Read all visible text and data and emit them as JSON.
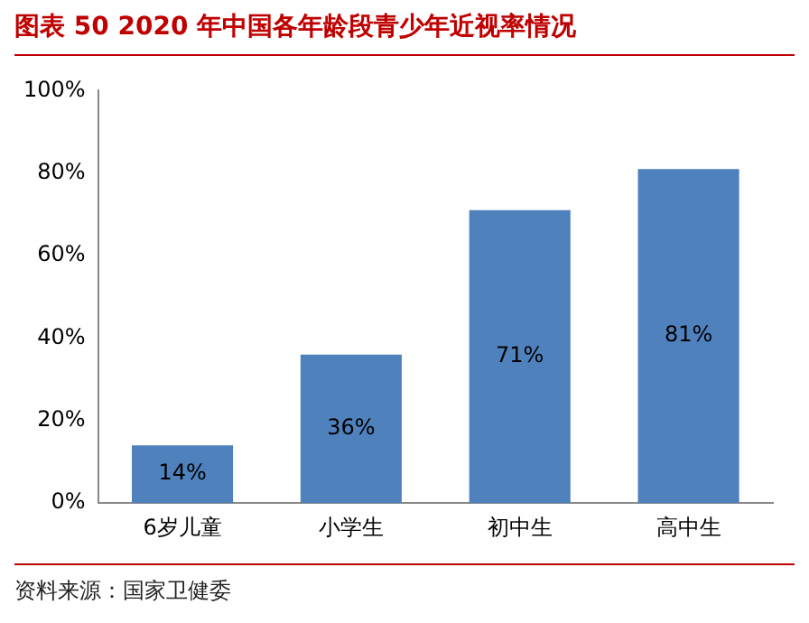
{
  "chart_data": {
    "type": "bar",
    "title": "图表 50 2020 年中国各年龄段青少年近视率情况",
    "categories": [
      "6岁儿童",
      "小学生",
      "初中生",
      "高中生"
    ],
    "values": [
      14,
      36,
      71,
      81
    ],
    "color": "#4f81bd",
    "value_labels": [
      "14%",
      "36%",
      "71%",
      "81%"
    ],
    "ylim": [
      0,
      100
    ],
    "yticks": [
      {
        "value": 0,
        "label": "0%"
      },
      {
        "value": 20,
        "label": "20%"
      },
      {
        "value": 40,
        "label": "40%"
      },
      {
        "value": 60,
        "label": "60%"
      },
      {
        "value": 80,
        "label": "80%"
      },
      {
        "value": 100,
        "label": "100%"
      }
    ],
    "grid": false,
    "legend": false,
    "annotations": [
      "资料来源：国家卫健委"
    ]
  }
}
